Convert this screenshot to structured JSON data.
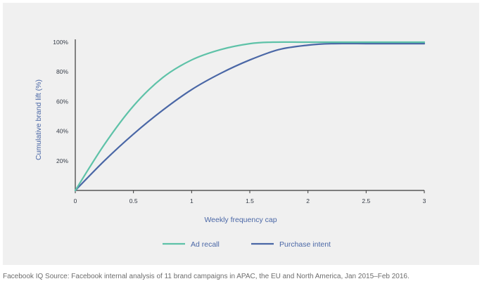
{
  "chart_data": {
    "type": "line",
    "xlabel": "Weekly frequency cap",
    "ylabel": "Cumulative brand lift (%)",
    "xlim": [
      0,
      3
    ],
    "ylim": [
      0,
      100
    ],
    "x_ticks": [
      "0",
      "0.5",
      "1",
      "1.5",
      "2",
      "2.5",
      "3"
    ],
    "y_ticks": [
      "20%",
      "40%",
      "60%",
      "80%",
      "100%"
    ],
    "grid": false,
    "legend": "bottom-center",
    "series": [
      {
        "name": "Ad recall",
        "color": "#5ec2a8",
        "x": [
          0,
          0.25,
          0.5,
          0.75,
          1.0,
          1.25,
          1.5,
          1.7,
          2.0,
          2.5,
          3.0
        ],
        "y": [
          0,
          31,
          57,
          76,
          88,
          95,
          99,
          100,
          100,
          100,
          100
        ]
      },
      {
        "name": "Purchase intent",
        "color": "#4a67a6",
        "x": [
          0,
          0.25,
          0.5,
          0.75,
          1.0,
          1.25,
          1.5,
          1.75,
          2.0,
          2.2,
          2.5,
          3.0
        ],
        "y": [
          0,
          20,
          38,
          54,
          68,
          79,
          88,
          95,
          98,
          99,
          99,
          99
        ]
      }
    ]
  },
  "caption": "Facebook IQ Source: Facebook internal analysis of 11 brand campaigns in APAC, the EU and North America, Jan 2015–Feb 2016."
}
